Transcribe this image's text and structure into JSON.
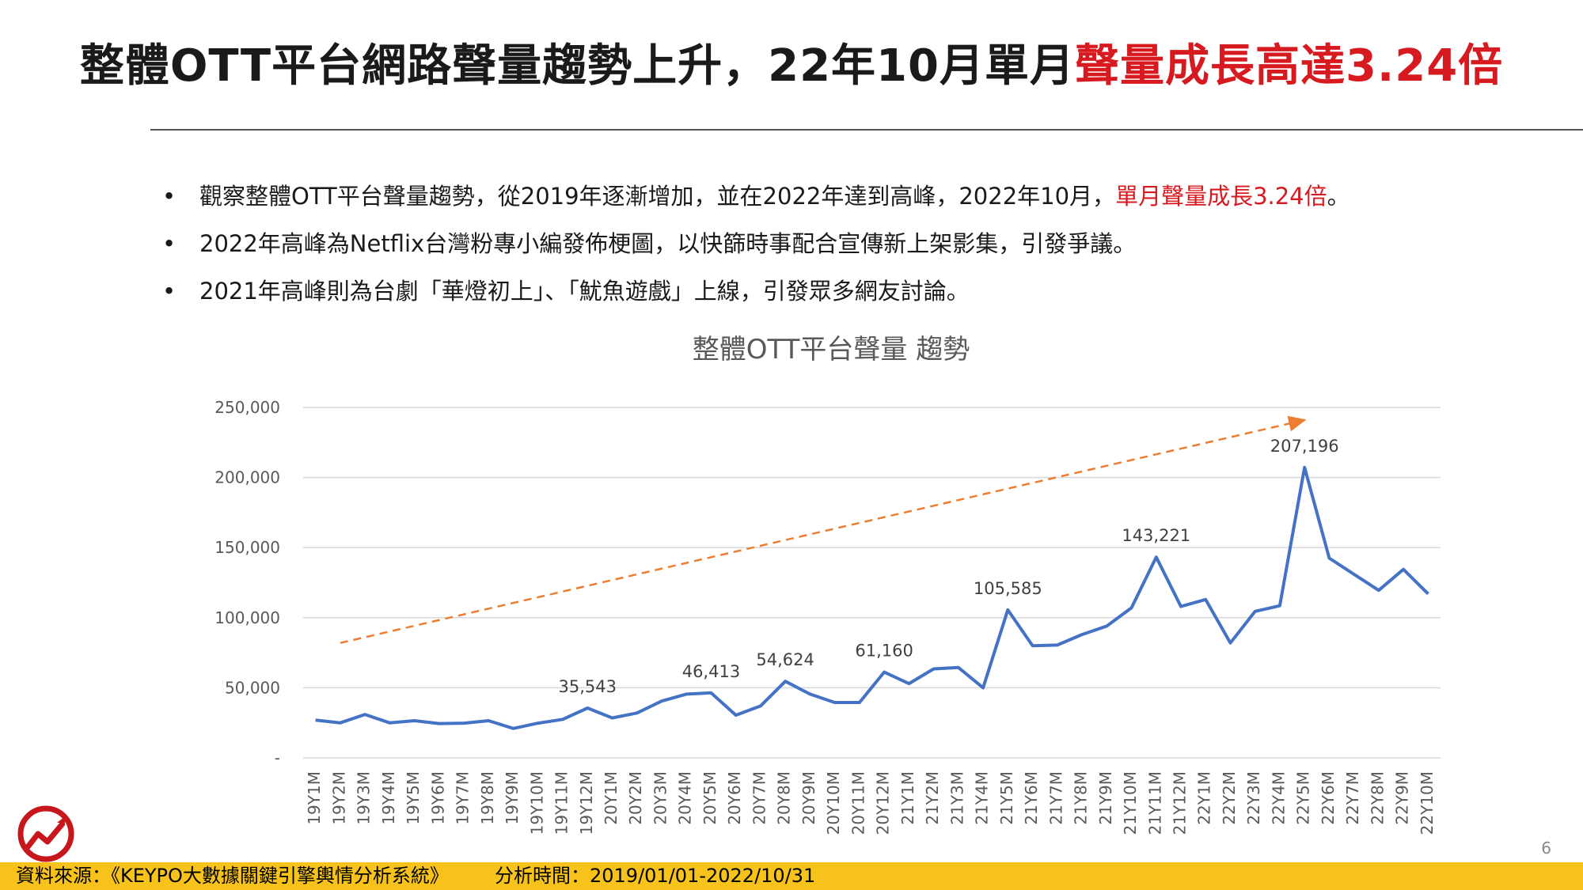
{
  "headline": {
    "normal": "整體OTT平台網路聲量趨勢上升，22年10月單月",
    "highlight": "聲量成長高達3.24倍"
  },
  "bullets": [
    {
      "text": "觀察整體OTT平台聲量趨勢，從2019年逐漸增加，並在2022年達到高峰，2022年10月，",
      "highlight": "單月聲量成長3.24倍",
      "tail": "。"
    },
    {
      "text": "2022年高峰為Netflix台灣粉專小編發佈梗圖，以快篩時事配合宣傳新上架影集，引發爭議。",
      "highlight": "",
      "tail": ""
    },
    {
      "text": "2021年高峰則為台劇「華燈初上」、「魷魚遊戲」上線，引發眾多網友討論。",
      "highlight": "",
      "tail": ""
    }
  ],
  "bullet_symbol": "•",
  "footer": {
    "source": "資料來源：《KEYPO大數據關鍵引擎輿情分析系統》",
    "period": "分析時間：2019/01/01-2022/10/31"
  },
  "page_number": "6",
  "colors": {
    "highlight": "#d71920",
    "line": "#4472c4",
    "trend": "#ed7d31",
    "footer": "#f7c31a"
  },
  "chart_data": {
    "type": "line",
    "title": "整體OTT平台聲量 趨勢",
    "ylim": [
      0,
      250000
    ],
    "yticks": [
      0,
      50000,
      100000,
      150000,
      200000,
      250000
    ],
    "ytick_labels": [
      "-",
      "50,000",
      "100,000",
      "150,000",
      "200,000",
      "250,000"
    ],
    "grid": true,
    "categories": [
      "19Y1M",
      "19Y2M",
      "19Y3M",
      "19Y4M",
      "19Y5M",
      "19Y6M",
      "19Y7M",
      "19Y8M",
      "19Y9M",
      "19Y10M",
      "19Y11M",
      "19Y12M",
      "20Y1M",
      "20Y2M",
      "20Y3M",
      "20Y4M",
      "20Y5M",
      "20Y6M",
      "20Y7M",
      "20Y8M",
      "20Y9M",
      "20Y10M",
      "20Y11M",
      "20Y12M",
      "21Y1M",
      "21Y2M",
      "21Y3M",
      "21Y4M",
      "21Y5M",
      "21Y6M",
      "21Y7M",
      "21Y8M",
      "21Y9M",
      "21Y10M",
      "21Y11M",
      "21Y12M",
      "22Y1M",
      "22Y2M",
      "22Y3M",
      "22Y4M",
      "22Y5M",
      "22Y6M",
      "22Y7M",
      "22Y8M",
      "22Y9M",
      "22Y10M"
    ],
    "values": [
      27000,
      25000,
      31000,
      25000,
      26500,
      24500,
      24800,
      26500,
      21000,
      24800,
      27500,
      35543,
      28500,
      32000,
      40500,
      45500,
      46413,
      30500,
      37000,
      54624,
      45500,
      39500,
      39500,
      61160,
      53000,
      63500,
      64500,
      50000,
      105585,
      80000,
      80500,
      88000,
      94000,
      107000,
      143221,
      108000,
      113000,
      82000,
      104500,
      108500,
      207196,
      142500,
      131000,
      119500,
      134500,
      117000
    ],
    "data_labels": [
      {
        "index": 11,
        "text": "35,543"
      },
      {
        "index": 16,
        "text": "46,413"
      },
      {
        "index": 19,
        "text": "54,624"
      },
      {
        "index": 23,
        "text": "61,160"
      },
      {
        "index": 28,
        "text": "105,585"
      },
      {
        "index": 34,
        "text": "143,221"
      },
      {
        "index": 40,
        "text": "207,196"
      }
    ],
    "trend_arrow": {
      "from": {
        "index": 1,
        "value": 82000
      },
      "to": {
        "index": 40,
        "value": 241000
      }
    }
  }
}
